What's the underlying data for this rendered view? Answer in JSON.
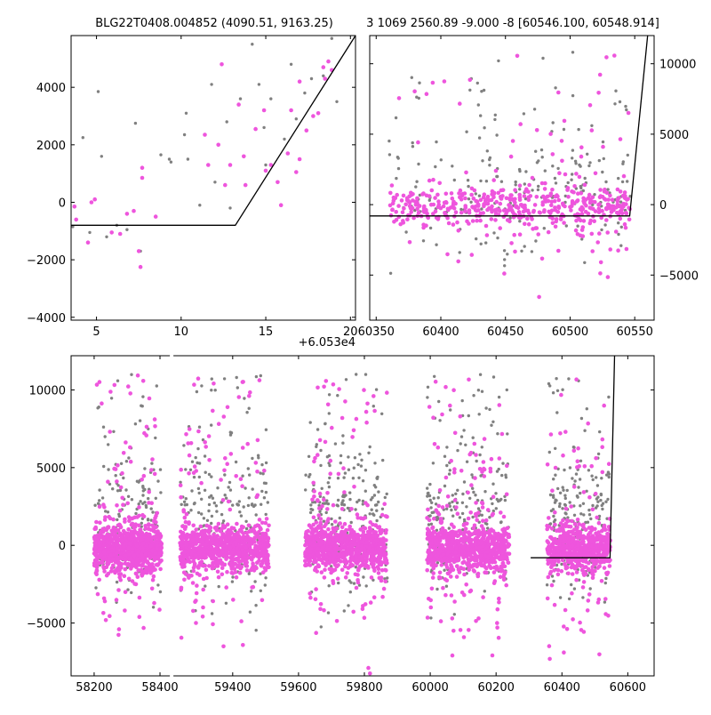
{
  "figure": {
    "title_left": "BLG22T0408.004852 (4090.51, 9163.25)",
    "title_right": "3 1069 2560.89 -9.000 -8 [60546.100, 60548.914]",
    "offset_label": "+6.053e4"
  },
  "colors": {
    "pink": "#ee55dd",
    "gray": "#808080",
    "model_line": "#000000"
  },
  "chart_data": [
    {
      "id": "top-left",
      "type": "scatter",
      "title": "BLG22T0408.004852 (4090.51, 9163.25)",
      "xlabel": "",
      "ylabel": "",
      "x_offset_label": "+6.053e4",
      "xlim": [
        3.5,
        20.3
      ],
      "ylim": [
        -4100,
        5800
      ],
      "xticks": [
        5,
        10,
        15,
        20
      ],
      "yticks": [
        -4000,
        -2000,
        0,
        2000,
        4000
      ],
      "series": [
        {
          "color": "gray",
          "points": [
            [
              3.6,
              -850
            ],
            [
              4.2,
              2250
            ],
            [
              4.6,
              -1050
            ],
            [
              5.1,
              3850
            ],
            [
              5.3,
              1600
            ],
            [
              5.6,
              -1200
            ],
            [
              6.2,
              -800
            ],
            [
              6.8,
              -950
            ],
            [
              7.3,
              2750
            ],
            [
              7.6,
              -1700
            ],
            [
              8.8,
              1650
            ],
            [
              9.3,
              1500
            ],
            [
              9.4,
              1400
            ],
            [
              10.2,
              2350
            ],
            [
              10.3,
              3100
            ],
            [
              10.4,
              1500
            ],
            [
              11.1,
              -100
            ],
            [
              11.8,
              4100
            ],
            [
              12.0,
              700
            ],
            [
              12.7,
              2800
            ],
            [
              12.9,
              -200
            ],
            [
              13.5,
              3600
            ],
            [
              14.2,
              5500
            ],
            [
              14.6,
              4100
            ],
            [
              14.9,
              2600
            ],
            [
              15.3,
              3600
            ],
            [
              16.1,
              2200
            ],
            [
              16.8,
              2900
            ],
            [
              17.3,
              3800
            ],
            [
              17.7,
              4300
            ],
            [
              18.4,
              4400
            ],
            [
              18.9,
              5700
            ],
            [
              19.2,
              3500
            ],
            [
              16.5,
              4800
            ],
            [
              15.0,
              1300
            ]
          ]
        },
        {
          "color": "pink",
          "points": [
            [
              3.7,
              -150
            ],
            [
              3.8,
              -600
            ],
            [
              4.5,
              -1400
            ],
            [
              4.7,
              0
            ],
            [
              4.9,
              100
            ],
            [
              5.9,
              -1050
            ],
            [
              6.4,
              -1100
            ],
            [
              6.8,
              -400
            ],
            [
              7.2,
              -300
            ],
            [
              7.5,
              -1700
            ],
            [
              7.7,
              1200
            ],
            [
              7.7,
              850
            ],
            [
              7.6,
              -2250
            ],
            [
              8.5,
              -500
            ],
            [
              11.4,
              2350
            ],
            [
              11.6,
              1300
            ],
            [
              12.2,
              2000
            ],
            [
              12.4,
              4800
            ],
            [
              12.6,
              600
            ],
            [
              12.9,
              1300
            ],
            [
              13.4,
              3400
            ],
            [
              13.7,
              1600
            ],
            [
              13.8,
              600
            ],
            [
              14.4,
              2550
            ],
            [
              14.9,
              3200
            ],
            [
              15.0,
              1100
            ],
            [
              15.3,
              1300
            ],
            [
              15.7,
              700
            ],
            [
              15.9,
              -100
            ],
            [
              16.3,
              1700
            ],
            [
              16.5,
              3200
            ],
            [
              16.8,
              1050
            ],
            [
              17.0,
              1500
            ],
            [
              17.4,
              2500
            ],
            [
              17.8,
              3000
            ],
            [
              18.1,
              3100
            ],
            [
              18.4,
              4700
            ],
            [
              18.5,
              4300
            ],
            [
              18.7,
              4900
            ],
            [
              17.0,
              4200
            ],
            [
              18.9,
              4600
            ]
          ]
        }
      ],
      "model_line": [
        [
          3.5,
          -800
        ],
        [
          13.2,
          -800
        ],
        [
          20.3,
          5800
        ]
      ]
    },
    {
      "id": "top-right",
      "type": "scatter",
      "title": "3 1069 2560.89 -9.000 -8 [60546.100, 60548.914]",
      "xlabel": "",
      "ylabel": "",
      "xlim": [
        60345,
        60565
      ],
      "ylim": [
        -8200,
        12000
      ],
      "xticks": [
        60350,
        60400,
        60450,
        60500,
        60550
      ],
      "yticks": [
        -5000,
        0,
        5000,
        10000
      ],
      "clusters": [
        {
          "xmin": 60360,
          "xmax": 60420,
          "n_pink": 140,
          "n_gray": 45
        },
        {
          "xmin": 60420,
          "xmax": 60475,
          "n_pink": 160,
          "n_gray": 70
        },
        {
          "xmin": 60475,
          "xmax": 60535,
          "n_pink": 180,
          "n_gray": 70
        },
        {
          "xmin": 60535,
          "xmax": 60547,
          "n_pink": 40,
          "n_gray": 20
        }
      ],
      "model_line": [
        [
          60345,
          -800
        ],
        [
          60546.1,
          -800
        ],
        [
          60560,
          12000
        ]
      ]
    },
    {
      "id": "bottom",
      "type": "scatter",
      "title": "",
      "xlabel": "",
      "ylabel": "",
      "xlim": [
        58130,
        60680
      ],
      "ylim": [
        -8400,
        12200
      ],
      "xticks": [
        58200,
        58400,
        59400,
        59600,
        59800,
        60000,
        60200,
        60400,
        60600
      ],
      "yticks": [
        -5000,
        0,
        5000,
        10000
      ],
      "axis_break": {
        "from": 58430,
        "to": 59220
      },
      "clusters": [
        {
          "xmin": 58200,
          "xmax": 58405,
          "n_pink": 900,
          "n_gray": 180
        },
        {
          "xmin": 59240,
          "xmax": 59510,
          "n_pink": 900,
          "n_gray": 220
        },
        {
          "xmin": 59620,
          "xmax": 59870,
          "n_pink": 900,
          "n_gray": 230
        },
        {
          "xmin": 59990,
          "xmax": 60240,
          "n_pink": 900,
          "n_gray": 230
        },
        {
          "xmin": 60355,
          "xmax": 60547,
          "n_pink": 650,
          "n_gray": 190
        }
      ],
      "model_line": [
        [
          60305,
          -800
        ],
        [
          60546.1,
          -800
        ],
        [
          60560,
          12200
        ]
      ]
    }
  ]
}
